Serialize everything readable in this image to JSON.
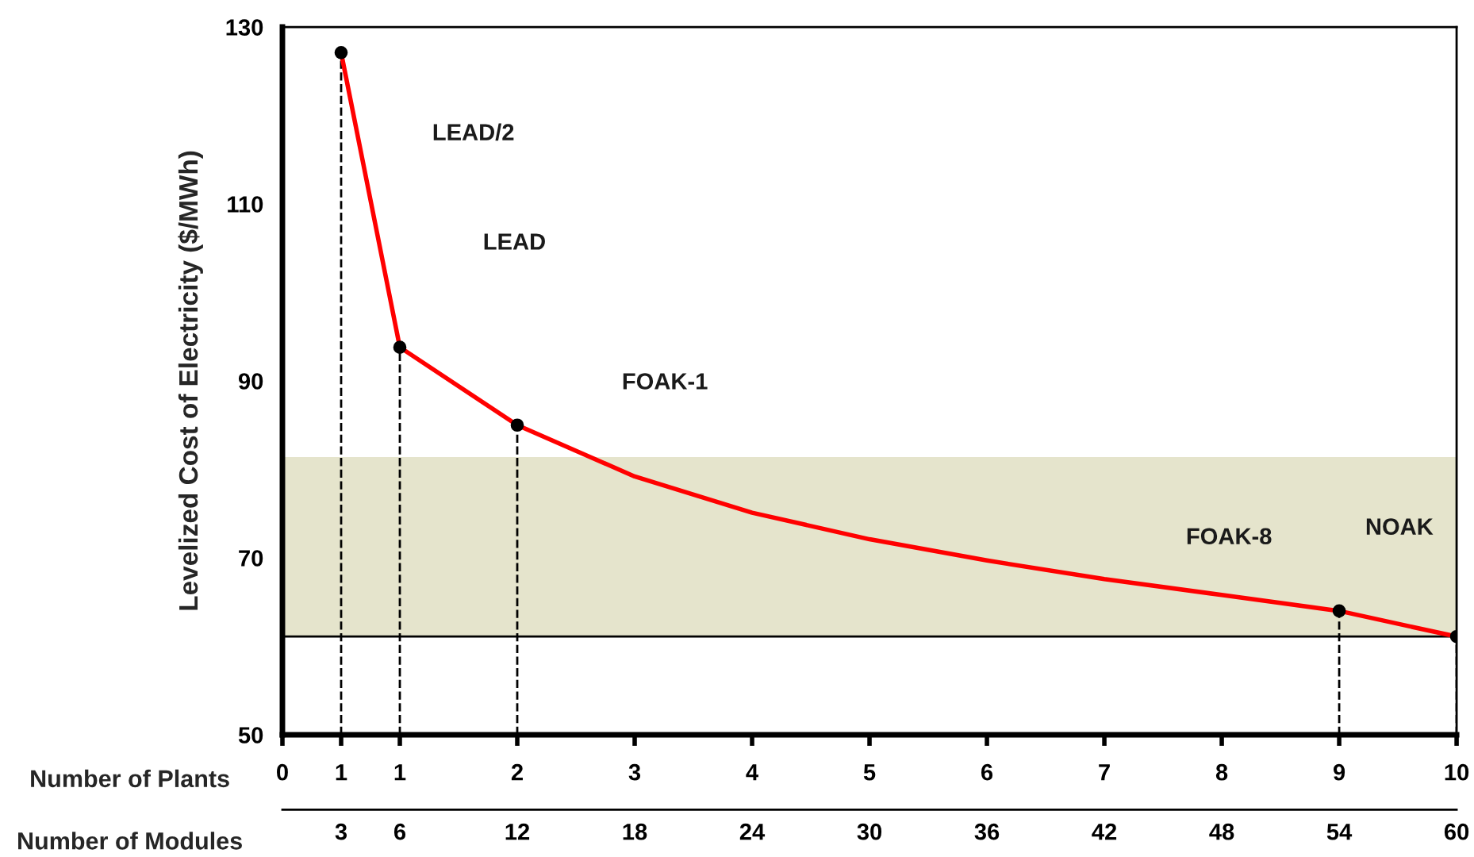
{
  "chart_data": {
    "type": "line",
    "ylabel": "Levelized Cost of Electricity ($/MWh)",
    "xlabel": "Number of Modules",
    "x2label": "Number of Plants",
    "xlim": [
      0,
      60
    ],
    "xticks": [
      3,
      6,
      12,
      18,
      24,
      30,
      36,
      42,
      48,
      54,
      60
    ],
    "x2lim": [
      0,
      10
    ],
    "x2ticks": [
      0,
      {
        "value": 0.5,
        "label": "1"
      },
      1,
      2,
      3,
      4,
      5,
      6,
      7,
      8,
      9,
      10
    ],
    "ylim": [
      50,
      130
    ],
    "yticks": [
      50,
      70,
      90,
      110,
      130
    ],
    "series": [
      {
        "color": "#ff0000",
        "x": [
          3,
          6,
          12,
          18,
          24,
          30,
          36,
          42,
          48,
          54,
          60
        ],
        "values": [
          127.1,
          93.8,
          85,
          79.2,
          75.1,
          72.1,
          69.7,
          67.6,
          65.8,
          64,
          61.1
        ]
      },
      {
        "type": "lollipop",
        "color": "#000000",
        "marker": "circle",
        "line_style": "dashed",
        "x": [
          3,
          6,
          12,
          54,
          60
        ],
        "values": [
          127.1,
          93.8,
          85,
          64,
          61.1
        ]
      }
    ],
    "bands": [
      {
        "axis": "y",
        "from": 61.1,
        "to": 81.4,
        "color": "#e5e4cc"
      }
    ],
    "ref_lines": [
      {
        "axis": "y",
        "value": 61.1,
        "color": "#000000",
        "line_style": "solid"
      }
    ],
    "annotations": [
      "LEAD/2",
      "LEAD",
      "FOAK-1",
      "FOAK-8",
      "NOAK"
    ]
  }
}
